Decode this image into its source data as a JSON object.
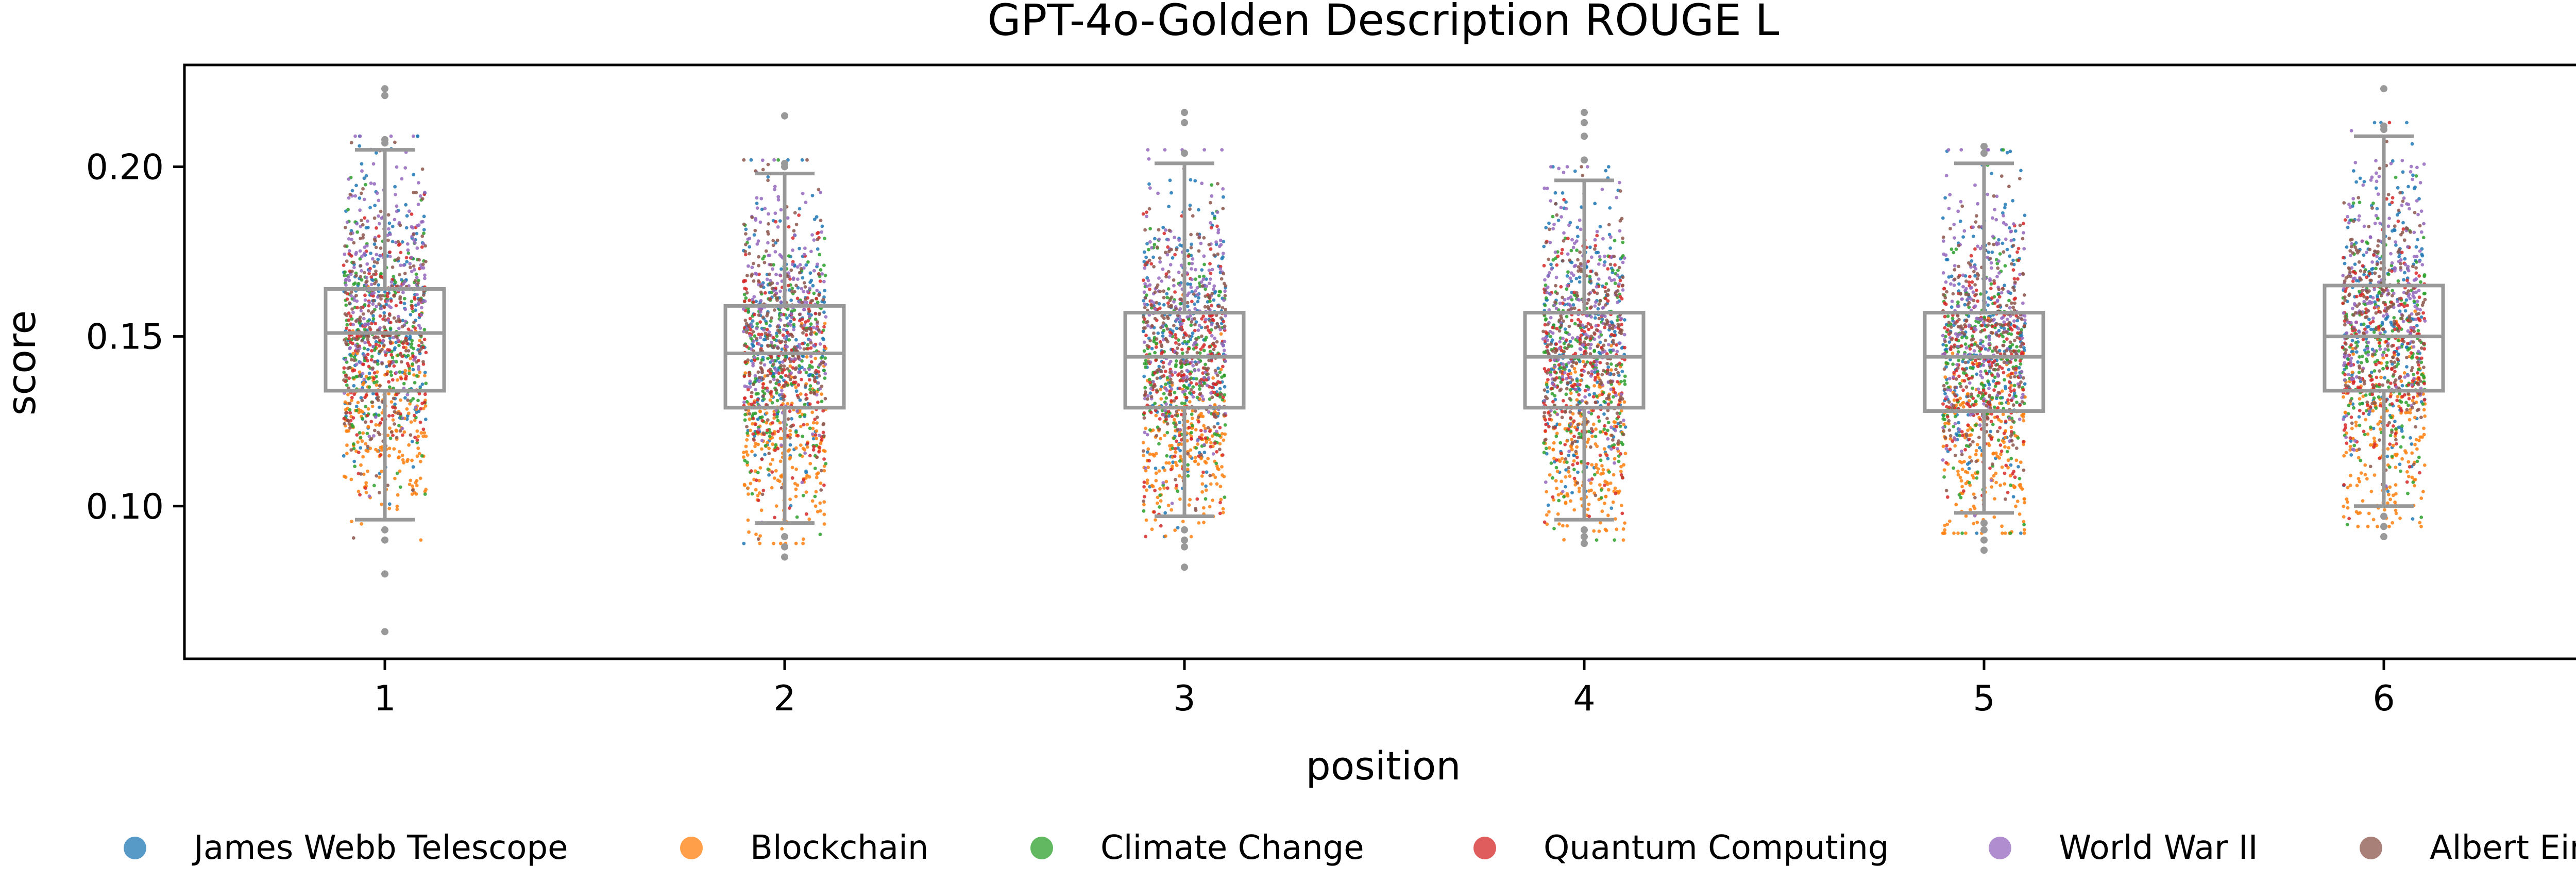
{
  "chart_data": {
    "type": "box",
    "title": "GPT-4o-Golden Description ROUGE L",
    "xlabel": "position",
    "ylabel": "score",
    "categories": [
      "1",
      "2",
      "3",
      "4",
      "5",
      "6"
    ],
    "ylim": [
      0.055,
      0.23
    ],
    "yticks": [
      0.1,
      0.15,
      0.2
    ],
    "ytick_labels": [
      "0.10",
      "0.15",
      "0.20"
    ],
    "grid": false,
    "legend_position": "bottom",
    "box_color": "#999999",
    "boxes": [
      {
        "position": "1",
        "whisker_low": 0.096,
        "q1": 0.134,
        "median": 0.151,
        "q3": 0.164,
        "whisker_high": 0.205,
        "outliers": [
          0.223,
          0.221,
          0.208,
          0.207,
          0.093,
          0.09,
          0.08,
          0.063
        ]
      },
      {
        "position": "2",
        "whisker_low": 0.095,
        "q1": 0.129,
        "median": 0.145,
        "q3": 0.159,
        "whisker_high": 0.198,
        "outliers": [
          0.215,
          0.201,
          0.2,
          0.091,
          0.088,
          0.085
        ]
      },
      {
        "position": "3",
        "whisker_low": 0.097,
        "q1": 0.129,
        "median": 0.144,
        "q3": 0.157,
        "whisker_high": 0.201,
        "outliers": [
          0.216,
          0.213,
          0.204,
          0.093,
          0.09,
          0.088,
          0.082
        ]
      },
      {
        "position": "4",
        "whisker_low": 0.096,
        "q1": 0.129,
        "median": 0.144,
        "q3": 0.157,
        "whisker_high": 0.196,
        "outliers": [
          0.216,
          0.213,
          0.209,
          0.202,
          0.093,
          0.091,
          0.089
        ]
      },
      {
        "position": "5",
        "whisker_low": 0.098,
        "q1": 0.128,
        "median": 0.144,
        "q3": 0.157,
        "whisker_high": 0.201,
        "outliers": [
          0.206,
          0.204,
          0.095,
          0.093,
          0.09,
          0.087
        ]
      },
      {
        "position": "6",
        "whisker_low": 0.1,
        "q1": 0.134,
        "median": 0.15,
        "q3": 0.165,
        "whisker_high": 0.209,
        "outliers": [
          0.223,
          0.212,
          0.211,
          0.097,
          0.094,
          0.091
        ]
      }
    ],
    "series": [
      {
        "name": "James Webb Telescope",
        "color": "#1f77b4",
        "center": 0.152,
        "spread": 0.022
      },
      {
        "name": "Blockchain",
        "color": "#ff7f0e",
        "center": 0.118,
        "spread": 0.014
      },
      {
        "name": "Climate Change",
        "color": "#2ca02c",
        "center": 0.143,
        "spread": 0.018
      },
      {
        "name": "Quantum Computing",
        "color": "#d62728",
        "center": 0.142,
        "spread": 0.018
      },
      {
        "name": "World War II",
        "color": "#9467bd",
        "center": 0.158,
        "spread": 0.02
      },
      {
        "name": "Albert Einstein",
        "color": "#8c564b",
        "center": 0.152,
        "spread": 0.02
      }
    ],
    "points_per_series": 200
  }
}
